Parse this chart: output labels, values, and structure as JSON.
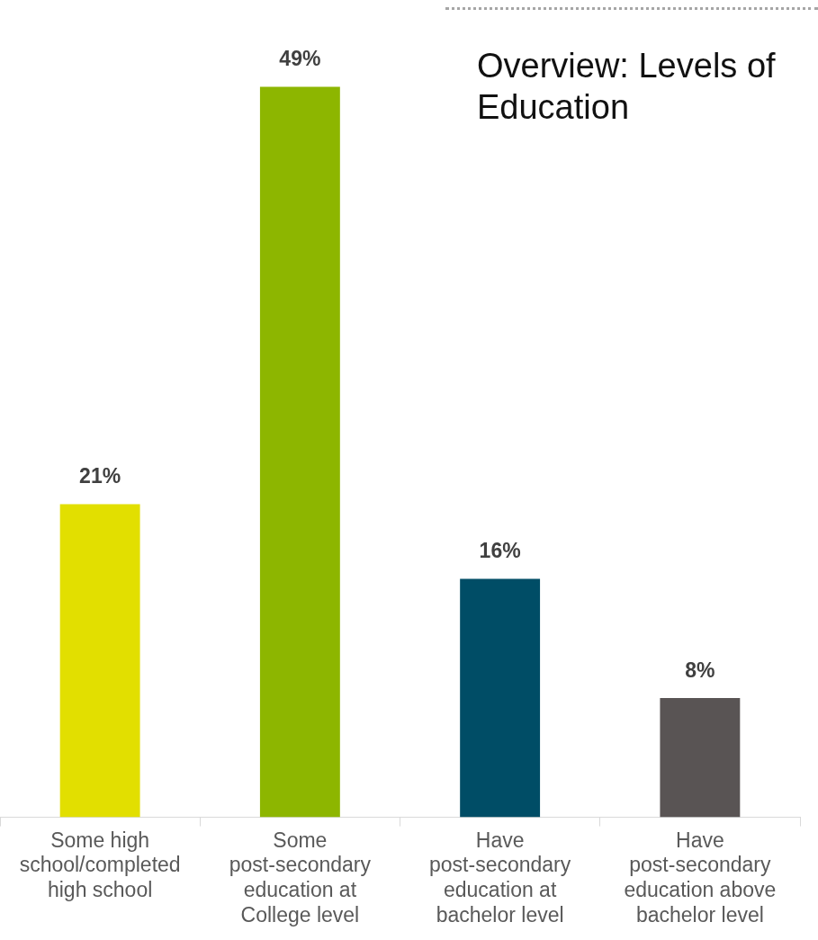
{
  "chart_data": {
    "type": "bar",
    "title": "Overview: Levels of Education",
    "categories": [
      "Some high school/completed high school",
      "Some post-secondary education at College level",
      "Have post-secondary education at bachelor level",
      "Have post-secondary education above bachelor level"
    ],
    "values": [
      21,
      49,
      16,
      8
    ],
    "colors": [
      "#e2df00",
      "#8db600",
      "#004d66",
      "#595454"
    ],
    "value_labels": [
      "21%",
      "49%",
      "16%",
      "8%"
    ],
    "tick_labels": "x",
    "grid": false,
    "legend": false
  }
}
